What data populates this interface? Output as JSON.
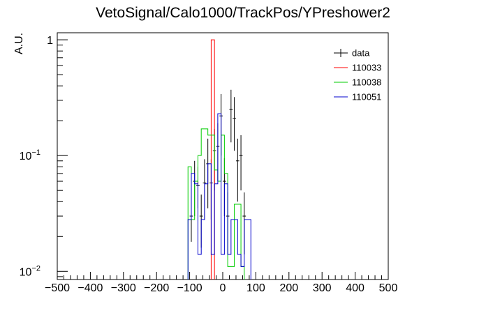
{
  "chart_data": {
    "type": "histogram",
    "title": "VetoSignal/Calo1000/TrackPos/YPreshower2",
    "xlabel": "",
    "ylabel": "A.U.",
    "xlim": [
      -500,
      500
    ],
    "ylim": [
      0.0085,
      1.15
    ],
    "yscale": "log",
    "grid": false,
    "legend_position": "top-right",
    "x_ticks": [
      -500,
      -400,
      -300,
      -200,
      -100,
      0,
      100,
      200,
      300,
      400,
      500
    ],
    "y_ticks": [
      {
        "value": 1,
        "label": "1"
      },
      {
        "value": 0.1,
        "label": "10",
        "exp": "−1"
      },
      {
        "value": 0.01,
        "label": "10",
        "exp": "−2"
      }
    ],
    "bin_width": 10,
    "series": [
      {
        "name": "data",
        "color": "#000000",
        "style": "points",
        "x": [
          -95,
          -85,
          -75,
          -65,
          -55,
          -45,
          -35,
          -25,
          -15,
          -5,
          5,
          15,
          25,
          35,
          45,
          55,
          65
        ],
        "y": [
          0.03,
          0.06,
          0.055,
          0.03,
          0.058,
          0.085,
          0.058,
          0.11,
          0.12,
          0.22,
          0.06,
          0.03,
          0.25,
          0.21,
          0.09,
          0.1,
          0.03
        ],
        "err_low": [
          0.012,
          0.03,
          0.02,
          0.014,
          0.03,
          0.05,
          0.03,
          0.06,
          0.06,
          0.12,
          0.03,
          0.016,
          0.12,
          0.1,
          0.05,
          0.05,
          0.016
        ],
        "err_high": [
          0.015,
          0.03,
          0.025,
          0.016,
          0.035,
          0.055,
          0.035,
          0.06,
          0.07,
          0.12,
          0.035,
          0.018,
          0.12,
          0.11,
          0.05,
          0.05,
          0.018
        ]
      },
      {
        "name": "110033",
        "color": "#ff0000",
        "style": "step",
        "bin_lo": [
          -35
        ],
        "values": [
          1.0
        ]
      },
      {
        "name": "110038",
        "color": "#00cc00",
        "style": "step",
        "bin_lo": [
          -105,
          -95,
          -85,
          -75,
          -65,
          -55,
          -45,
          -35,
          -25,
          -15,
          -5,
          5,
          15,
          25,
          35,
          45,
          55
        ],
        "values": [
          0.08,
          0.028,
          0.06,
          0.1,
          0.17,
          0.17,
          0.15,
          0.15,
          0.075,
          0.06,
          0.15,
          0.07,
          0.011,
          0.011,
          0.038,
          0.038,
          0.011
        ]
      },
      {
        "name": "110051",
        "color": "#0000cc",
        "style": "step",
        "bin_lo": [
          -105,
          -95,
          -85,
          -75,
          -65,
          -55,
          -45,
          -35,
          -25,
          -15,
          -5,
          5,
          15,
          25,
          35,
          45,
          55,
          65,
          75
        ],
        "values": [
          0.028,
          0.07,
          0.057,
          0.014,
          0.028,
          0.057,
          0.085,
          0.014,
          0.057,
          0.23,
          0.014,
          0.057,
          0.014,
          0.028,
          0.028,
          0.014,
          0.011,
          0.028,
          0.028
        ]
      }
    ]
  }
}
